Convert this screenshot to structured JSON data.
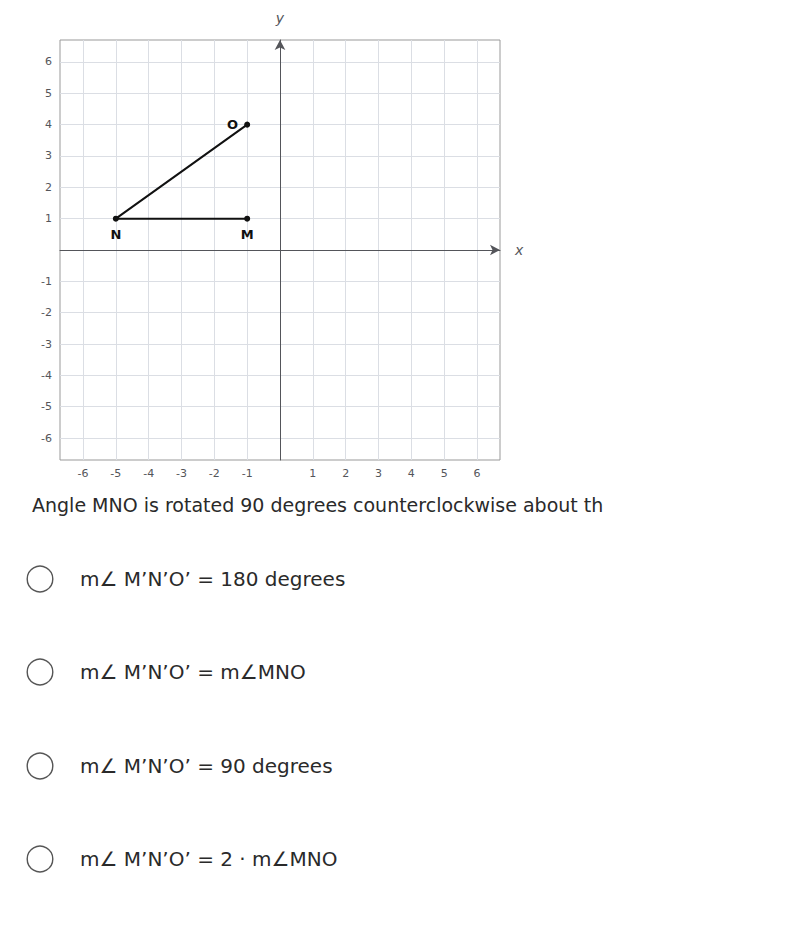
{
  "chart_data": {
    "type": "line",
    "x": [
      -1,
      -5,
      -1
    ],
    "values": [
      1,
      1,
      4
    ],
    "point_labels": [
      "M",
      "N",
      "O"
    ],
    "color": "#111111",
    "xlabel": "x",
    "ylabel": "y",
    "xlim": [
      -6.7,
      6.7
    ],
    "ylim": [
      -6.7,
      6.7
    ],
    "xticks": [
      -6,
      -5,
      -4,
      -3,
      -2,
      -1,
      {
        "value": 0,
        "label": null
      },
      1,
      2,
      3,
      4,
      5,
      6
    ],
    "yticks": [
      -6,
      -5,
      -4,
      -3,
      -2,
      -1,
      {
        "value": 0,
        "label": null
      },
      1,
      2,
      3,
      4,
      5,
      6
    ],
    "grid": true,
    "annotations": [
      "Angle MNO is rotated 90 degrees counterclockwise about th",
      "m∠ M’N’O’ = 180 degrees",
      "m∠ M’N’O’ = m∠MNO",
      "m∠ M’N’O’ = 90 degrees",
      "m∠ M’N’O’ = 2 · m∠MNO"
    ]
  }
}
